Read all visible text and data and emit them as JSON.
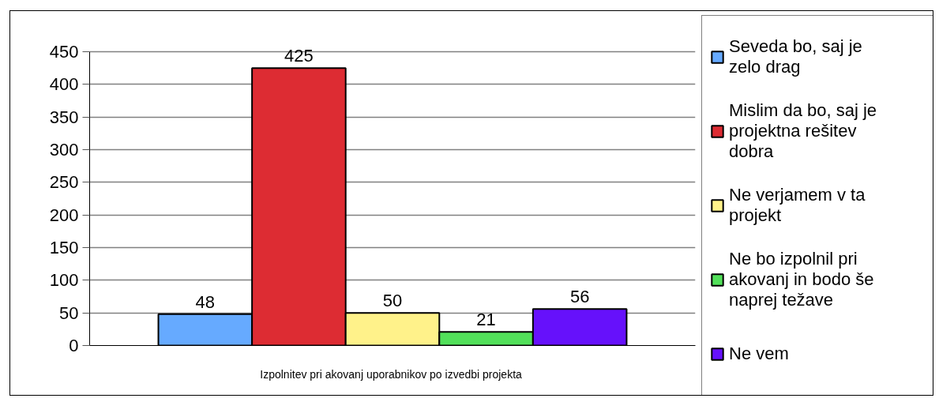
{
  "chart_data": {
    "type": "bar",
    "categories": [
      "Izpolnitev pri  akovanj uporabnikov po izvedbi projekta"
    ],
    "series": [
      {
        "name": "Seveda bo, saj je zelo drag",
        "color": "#66aaff",
        "values": [
          48
        ]
      },
      {
        "name": "Mislim da bo, saj je projektna rešitev dobra",
        "color": "#dd2c33",
        "values": [
          425
        ]
      },
      {
        "name": "Ne verjamem v ta projekt",
        "color": "#fff28a",
        "values": [
          50
        ]
      },
      {
        "name": "Ne bo izpolnil pri  akovanj in bodo še naprej težave",
        "color": "#52e05a",
        "values": [
          21
        ]
      },
      {
        "name": "Ne vem",
        "color": "#6611fb",
        "values": [
          56
        ]
      }
    ],
    "ylim": [
      0,
      450
    ],
    "yticks": [
      0,
      50,
      100,
      150,
      200,
      250,
      300,
      350,
      400,
      450
    ],
    "grid": "y",
    "legend": "right",
    "data_labels": true
  }
}
